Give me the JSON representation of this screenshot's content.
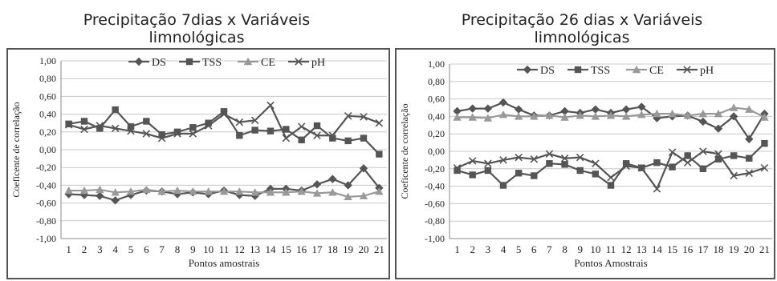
{
  "chart_data": [
    {
      "type": "line",
      "title": "Precipitação 7dias x Variáveis\nlimnológicas",
      "xlabel": "Pontos amostrais",
      "ylabel": "Coeficente de correlação",
      "ylim": [
        -1.0,
        1.0
      ],
      "yticks": [
        "1,00",
        "0,80",
        "0,60",
        "0,40",
        "0,20",
        "0,00",
        "-0,20",
        "-0,40",
        "-0,60",
        "-0,80",
        "-1,00"
      ],
      "categories": [
        "1",
        "2",
        "3",
        "4",
        "5",
        "6",
        "7",
        "8",
        "9",
        "10",
        "11",
        "12",
        "13",
        "14",
        "15",
        "16",
        "17",
        "18",
        "19",
        "20",
        "21"
      ],
      "grid": true,
      "legend": "top",
      "series": [
        {
          "name": "DS",
          "marker": "diamond",
          "color": "#555555",
          "values": [
            -0.5,
            -0.51,
            -0.52,
            -0.57,
            -0.51,
            -0.46,
            -0.47,
            -0.5,
            -0.48,
            -0.5,
            -0.46,
            -0.51,
            -0.52,
            -0.44,
            -0.44,
            -0.46,
            -0.39,
            -0.33,
            -0.4,
            -0.21,
            -0.43
          ]
        },
        {
          "name": "TSS",
          "marker": "square",
          "color": "#555555",
          "values": [
            0.29,
            0.32,
            0.24,
            0.45,
            0.26,
            0.32,
            0.17,
            0.2,
            0.25,
            0.3,
            0.43,
            0.16,
            0.22,
            0.21,
            0.23,
            0.11,
            0.27,
            0.13,
            0.1,
            0.13,
            -0.05
          ]
        },
        {
          "name": "CE",
          "marker": "triangle",
          "color": "#999999",
          "values": [
            -0.46,
            -0.46,
            -0.45,
            -0.48,
            -0.47,
            -0.45,
            -0.47,
            -0.46,
            -0.47,
            -0.47,
            -0.47,
            -0.47,
            -0.48,
            -0.48,
            -0.48,
            -0.47,
            -0.49,
            -0.48,
            -0.53,
            -0.52,
            -0.47
          ]
        },
        {
          "name": "pH",
          "marker": "x",
          "color": "#555555",
          "values": [
            0.28,
            0.23,
            0.27,
            0.24,
            0.21,
            0.18,
            0.13,
            0.18,
            0.18,
            0.27,
            0.4,
            0.31,
            0.33,
            0.5,
            0.13,
            0.26,
            0.16,
            0.16,
            0.38,
            0.37,
            0.3
          ]
        }
      ]
    },
    {
      "type": "line",
      "title": "Precipitação 26 dias x Variáveis\nlimnológicas",
      "xlabel": "Pontos Amostrais",
      "ylabel": "Coeficente de correlação",
      "ylim": [
        -1.0,
        1.0
      ],
      "yticks": [
        "1,00",
        "0,80",
        "0,60",
        "0,40",
        "0,20",
        "0,00",
        "-0,20",
        "-0,40",
        "-0,60",
        "-0,80",
        "-1,00"
      ],
      "categories": [
        "1",
        "2",
        "3",
        "4",
        "5",
        "6",
        "7",
        "8",
        "9",
        "10",
        "11",
        "12",
        "13",
        "14",
        "15",
        "16",
        "17",
        "18",
        "19",
        "20",
        "21"
      ],
      "grid": true,
      "legend": "top",
      "series": [
        {
          "name": "DS",
          "marker": "diamond",
          "color": "#555555",
          "values": [
            0.46,
            0.49,
            0.49,
            0.56,
            0.48,
            0.41,
            0.41,
            0.46,
            0.44,
            0.48,
            0.44,
            0.48,
            0.51,
            0.38,
            0.4,
            0.41,
            0.34,
            0.26,
            0.4,
            0.14,
            0.43
          ]
        },
        {
          "name": "TSS",
          "marker": "square",
          "color": "#555555",
          "values": [
            -0.22,
            -0.27,
            -0.22,
            -0.39,
            -0.25,
            -0.28,
            -0.14,
            -0.15,
            -0.22,
            -0.26,
            -0.39,
            -0.14,
            -0.19,
            -0.13,
            -0.18,
            -0.05,
            -0.2,
            -0.09,
            -0.05,
            -0.08,
            0.09
          ]
        },
        {
          "name": "CE",
          "marker": "triangle",
          "color": "#999999",
          "values": [
            0.39,
            0.39,
            0.38,
            0.42,
            0.4,
            0.4,
            0.41,
            0.39,
            0.41,
            0.4,
            0.41,
            0.4,
            0.42,
            0.43,
            0.43,
            0.41,
            0.43,
            0.43,
            0.5,
            0.48,
            0.39
          ]
        },
        {
          "name": "pH",
          "marker": "x",
          "color": "#555555",
          "values": [
            -0.19,
            -0.11,
            -0.14,
            -0.1,
            -0.07,
            -0.09,
            -0.03,
            -0.08,
            -0.07,
            -0.14,
            -0.3,
            -0.17,
            -0.19,
            -0.43,
            -0.01,
            -0.13,
            0.0,
            -0.03,
            -0.28,
            -0.25,
            -0.19
          ]
        }
      ]
    }
  ]
}
